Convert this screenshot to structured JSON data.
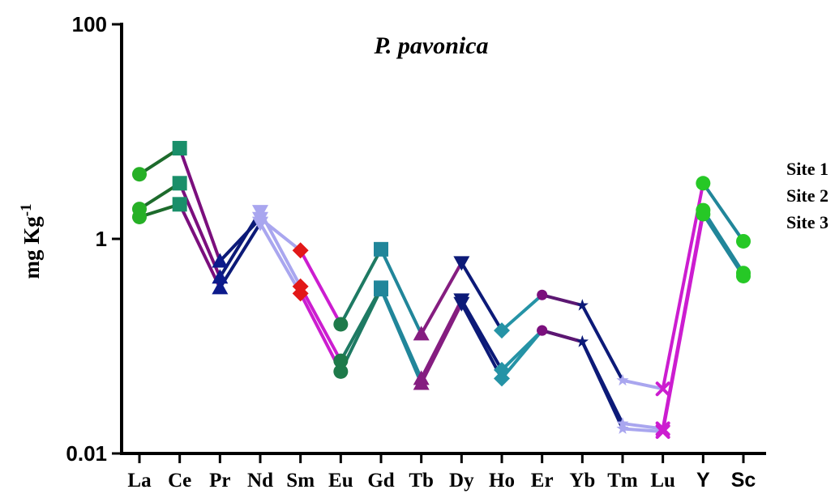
{
  "chart_data": {
    "type": "line",
    "title": "P. pavonica",
    "ylabel": "mg Kg",
    "ylabel_sup": "-1",
    "yscale": "log",
    "ylim": [
      0.01,
      100
    ],
    "yticks": [
      {
        "value": 0.01,
        "label": "0.01"
      },
      {
        "value": 1,
        "label": "1"
      },
      {
        "value": 100,
        "label": "100"
      }
    ],
    "categories": [
      "La",
      "Ce",
      "Pr",
      "Nd",
      "Sm",
      "Eu",
      "Gd",
      "Tb",
      "Dy",
      "Ho",
      "Er",
      "Yb",
      "Tm",
      "Lu",
      "Y",
      "Sc"
    ],
    "legend": [
      "Site 1",
      "Site 2",
      "Site 3"
    ],
    "segment_colors": {
      "La-Ce": "#1d6b2c",
      "Ce-Pr": "#7b0f7d",
      "Pr-Nd": "#0c1a78",
      "Nd-Sm": "#a9a6ef",
      "Sm-Eu": "#cc1dd0",
      "Eu-Gd": "#1e7a63",
      "Gd-Tb": "#21869a",
      "Tb-Dy": "#851d80",
      "Dy-Ho": "#0c1a78",
      "Ho-Er": "#2593a6",
      "Er-Yb": "#5c1772",
      "Yb-Tm": "#0c1a78",
      "Tm-Lu": "#a9a6ef",
      "Lu-Y": "#cc1dd0",
      "Y-Sc": "#21869a"
    },
    "marker_styles": {
      "La": {
        "shape": "circle",
        "color": "#26b026"
      },
      "Ce": {
        "shape": "square",
        "color": "#1a8f6a"
      },
      "Pr": {
        "shape": "triangle",
        "color": "#0c1a8c"
      },
      "Nd": {
        "shape": "triangle-down",
        "color": "#a9a6ef"
      },
      "Sm": {
        "shape": "diamond",
        "color": "#e21818"
      },
      "Eu": {
        "shape": "circle",
        "color": "#1e7a4a"
      },
      "Gd": {
        "shape": "square",
        "color": "#21869a"
      },
      "Tb": {
        "shape": "triangle",
        "color": "#851d80"
      },
      "Dy": {
        "shape": "triangle-down",
        "color": "#0c1a78"
      },
      "Ho": {
        "shape": "diamond",
        "color": "#2593a6"
      },
      "Er": {
        "shape": "small-circle",
        "color": "#7b0f7d"
      },
      "Yb": {
        "shape": "star",
        "color": "#0c1a78"
      },
      "Tm": {
        "shape": "star",
        "color": "#a9a6ef"
      },
      "Lu": {
        "shape": "x",
        "color": "#cc1dd0"
      },
      "Y": {
        "shape": "circle",
        "color": "#26c826"
      },
      "Sc": {
        "shape": "circle",
        "color": "#26c826"
      }
    },
    "series": [
      {
        "values": [
          4.0,
          7.0,
          0.62,
          1.55,
          0.78,
          0.16,
          0.8,
          0.13,
          0.6,
          0.14,
          0.3,
          0.24,
          0.048,
          0.04,
          3.3,
          0.95
        ]
      },
      {
        "values": [
          1.9,
          3.3,
          0.44,
          1.8,
          0.36,
          0.073,
          0.35,
          0.05,
          0.27,
          0.06,
          0.14,
          0.11,
          0.019,
          0.017,
          1.85,
          0.48
        ]
      },
      {
        "values": [
          1.6,
          2.1,
          0.35,
          1.4,
          0.31,
          0.058,
          0.34,
          0.045,
          0.25,
          0.05,
          0.14,
          0.11,
          0.017,
          0.016,
          1.7,
          0.45
        ]
      }
    ],
    "grid": false
  }
}
